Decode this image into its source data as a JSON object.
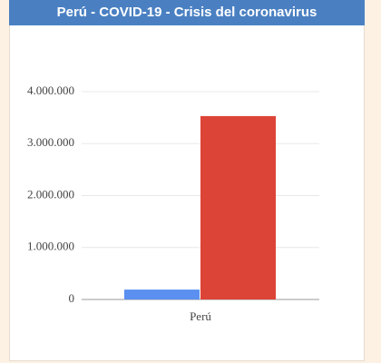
{
  "chart_data": {
    "type": "bar",
    "title": "Perú - COVID-19 - Crisis del coronavirus",
    "categories": [
      "Perú"
    ],
    "series": [
      {
        "color": "#5b8ff0",
        "values": [
          190000
        ]
      },
      {
        "color": "#dc4437",
        "values": [
          3530000
        ]
      }
    ],
    "ylim": [
      0,
      4000000
    ],
    "yticks": [
      {
        "value": 0,
        "label": "0"
      },
      {
        "value": 1000000,
        "label": "1.000.000"
      },
      {
        "value": 2000000,
        "label": "2.000.000"
      },
      {
        "value": 3000000,
        "label": "3.000.000"
      },
      {
        "value": 4000000,
        "label": "4.000.000"
      }
    ],
    "grid": true
  }
}
